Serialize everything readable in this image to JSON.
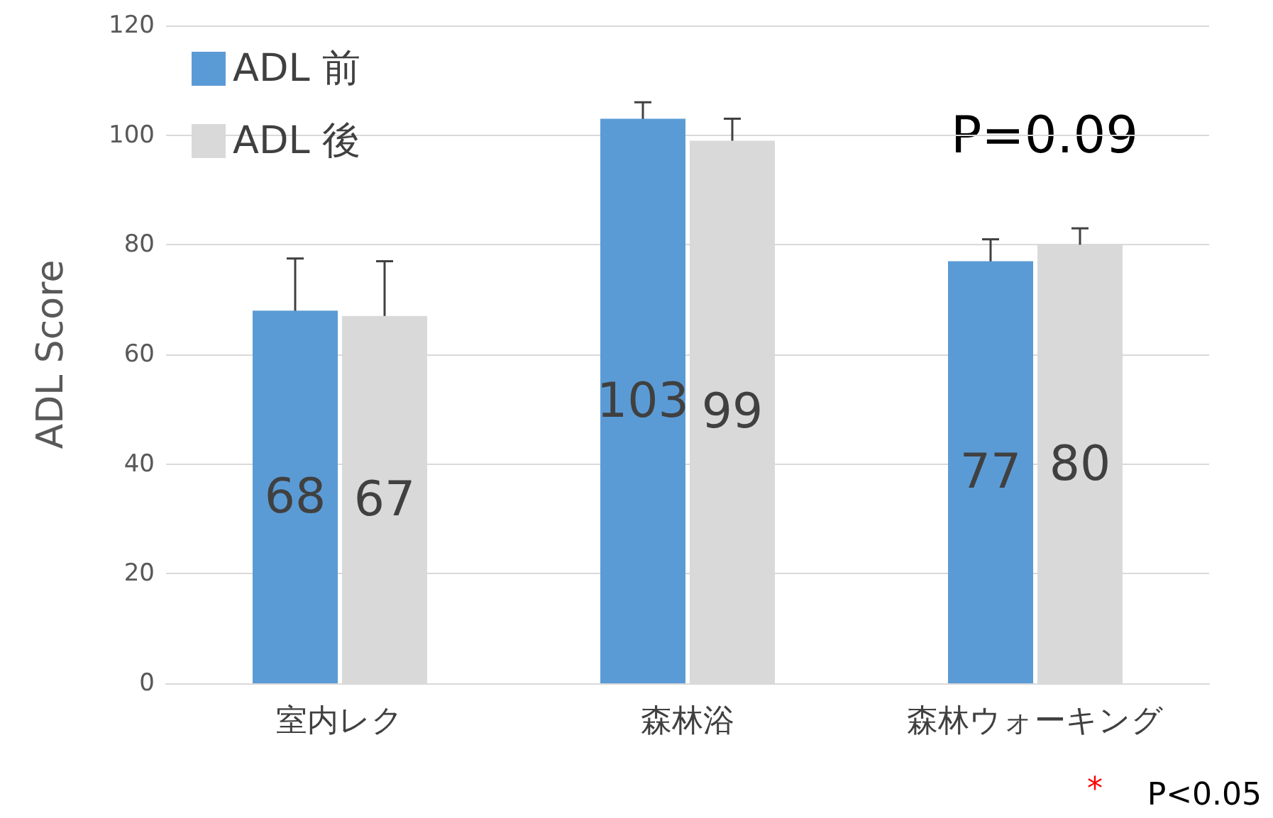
{
  "chart_data": {
    "type": "bar",
    "ylabel": "ADL Score",
    "categories": [
      "室内レク",
      "森林浴",
      "森林ウォーキング"
    ],
    "series": [
      {
        "name": "ADL 前",
        "color": "#5b9bd5",
        "values": [
          68,
          103,
          77
        ],
        "errors": [
          9.5,
          3,
          4
        ]
      },
      {
        "name": "ADL 後",
        "color": "#d9d9d9",
        "values": [
          67,
          99,
          80
        ],
        "errors": [
          10,
          4,
          3
        ]
      }
    ],
    "ylim": [
      0,
      120
    ],
    "yticks": [
      0,
      20,
      40,
      60,
      80,
      100,
      120
    ],
    "grid": "y",
    "legend": "top left",
    "data_labels": true,
    "annotations": [
      "P=0.09",
      "*",
      "P<0.05"
    ]
  }
}
